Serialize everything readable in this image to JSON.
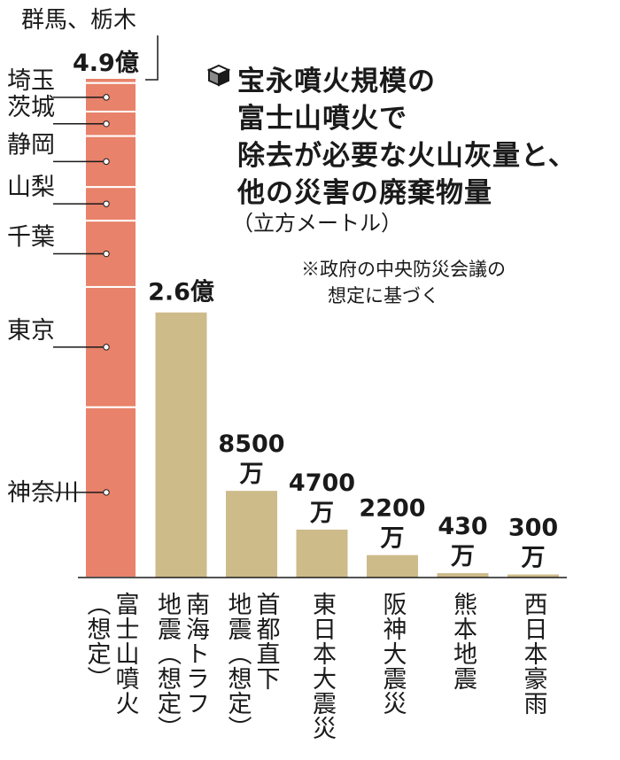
{
  "title": {
    "icon": "cube-icon",
    "lines": [
      "宝永噴火規模の",
      "富士山噴火で",
      "除去が必要な火山灰量と、",
      "他の災害の廃棄物量"
    ],
    "unit": "（立方メートル）"
  },
  "note": {
    "lines": [
      "※政府の中央防災会議の",
      "想定に基づく"
    ]
  },
  "chart_data": {
    "type": "bar",
    "title": "宝永噴火規模の富士山噴火で除去が必要な火山灰量と、他の災害の廃棄物量",
    "ylabel": "（立方メートル）",
    "grid": false,
    "ylim": [
      0,
      490000000
    ],
    "categories": [
      "富士山噴火（想定）",
      "南海トラフ地震（想定）",
      "首都直下地震（想定）",
      "東日本大震災",
      "阪神大震災",
      "熊本地震",
      "西日本豪雨"
    ],
    "category_label_columns": [
      [
        "（想定）",
        "富士山噴火"
      ],
      [
        "地震（想定）",
        "南海トラフ"
      ],
      [
        "地震（想定）",
        "首都直下"
      ],
      [
        "東日本大震災"
      ],
      [
        "阪神大震災"
      ],
      [
        "熊本地震"
      ],
      [
        "西日本豪雨"
      ]
    ],
    "values": [
      490000000,
      260000000,
      85000000,
      47000000,
      22000000,
      4300000,
      3000000
    ],
    "value_labels": [
      [
        "4.9億"
      ],
      [
        "2.6億"
      ],
      [
        "8500",
        "万"
      ],
      [
        "4700",
        "万"
      ],
      [
        "2200",
        "万"
      ],
      [
        "430",
        "万"
      ],
      [
        "300",
        "万"
      ]
    ],
    "colors": {
      "highlight": "#e8826a",
      "bar": "#cdbb8a",
      "stroke": "#ffffff",
      "text": "#1a1a1a"
    },
    "stack": {
      "top_label": "群馬、栃木",
      "segments": [
        {
          "label": "群馬、栃木",
          "value": 5000000
        },
        {
          "label": "埼玉",
          "value": 28000000
        },
        {
          "label": "茨城",
          "value": 24000000
        },
        {
          "label": "静岡",
          "value": 50000000
        },
        {
          "label": "山梨",
          "value": 33000000
        },
        {
          "label": "千葉",
          "value": 65000000
        },
        {
          "label": "東京",
          "value": 118000000
        },
        {
          "label": "神奈川",
          "value": 167000000
        }
      ]
    }
  }
}
